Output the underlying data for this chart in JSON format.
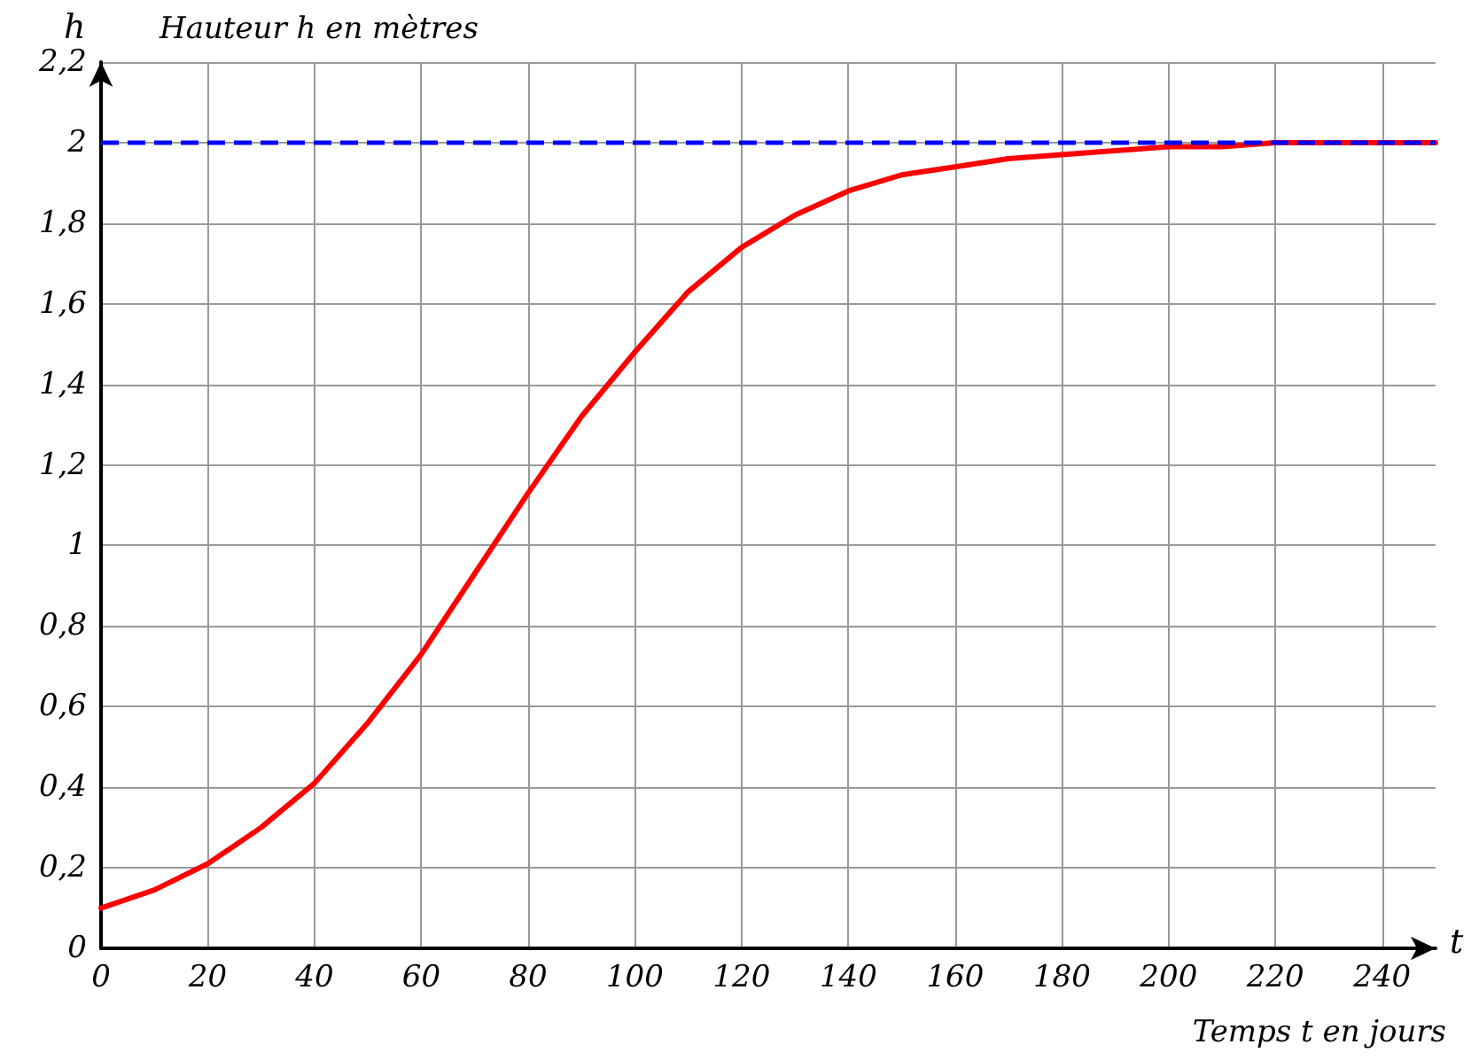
{
  "chart_data": {
    "type": "line",
    "title": "Hauteur h en mètres",
    "xlabel": "t",
    "ylabel": "h",
    "annotations": [
      "Temps t en jours"
    ],
    "x": [
      0,
      10,
      20,
      30,
      40,
      50,
      60,
      70,
      80,
      90,
      100,
      110,
      120,
      130,
      140,
      150,
      160,
      170,
      180,
      190,
      200,
      210,
      220,
      230,
      240,
      250
    ],
    "series": [
      {
        "color": "#ff0000",
        "values": [
          0.1,
          0.145,
          0.21,
          0.3,
          0.41,
          0.56,
          0.73,
          0.93,
          1.13,
          1.32,
          1.48,
          1.63,
          1.74,
          1.82,
          1.88,
          1.92,
          1.94,
          1.96,
          1.97,
          1.98,
          1.99,
          1.99,
          2.0,
          2.0,
          2.0,
          2.0
        ]
      }
    ],
    "xlim": [
      0,
      250
    ],
    "xticks": [
      0,
      20,
      40,
      60,
      80,
      100,
      120,
      140,
      160,
      180,
      200,
      220,
      240
    ],
    "ylim": [
      0,
      2.2
    ],
    "yticks": [
      0,
      {
        "value": 0.2,
        "label": "0,2"
      },
      {
        "value": 0.4,
        "label": "0,4"
      },
      {
        "value": 0.6,
        "label": "0,6"
      },
      {
        "value": 0.8,
        "label": "0,8"
      },
      1,
      {
        "value": 1.2,
        "label": "1,2"
      },
      {
        "value": 1.4,
        "label": "1,4"
      },
      {
        "value": 1.6,
        "label": "1,6"
      },
      {
        "value": 1.8,
        "label": "1,8"
      },
      2,
      {
        "value": 2.2,
        "label": "2,2"
      }
    ],
    "ref_lines": [
      {
        "axis": "y",
        "value": 2,
        "color": "#0000ff",
        "line_style": "dashed"
      }
    ],
    "grid": true,
    "marker": "none",
    "line_style": "solid"
  }
}
